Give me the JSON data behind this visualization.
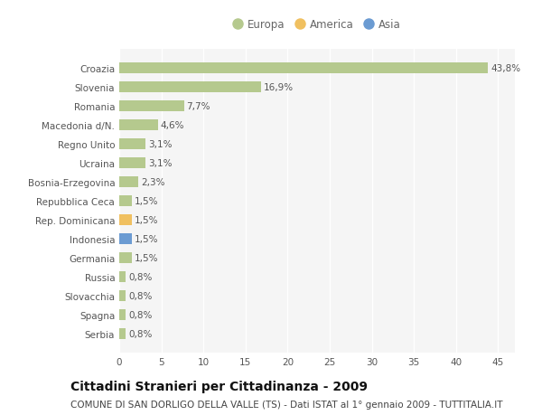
{
  "categories": [
    "Croazia",
    "Slovenia",
    "Romania",
    "Macedonia d/N.",
    "Regno Unito",
    "Ucraina",
    "Bosnia-Erzegovina",
    "Repubblica Ceca",
    "Rep. Dominicana",
    "Indonesia",
    "Germania",
    "Russia",
    "Slovacchia",
    "Spagna",
    "Serbia"
  ],
  "values": [
    43.8,
    16.9,
    7.7,
    4.6,
    3.1,
    3.1,
    2.3,
    1.5,
    1.5,
    1.5,
    1.5,
    0.8,
    0.8,
    0.8,
    0.8
  ],
  "colors": [
    "#b5c98e",
    "#b5c98e",
    "#b5c98e",
    "#b5c98e",
    "#b5c98e",
    "#b5c98e",
    "#b5c98e",
    "#b5c98e",
    "#f0c060",
    "#6b9bd2",
    "#b5c98e",
    "#b5c98e",
    "#b5c98e",
    "#b5c98e",
    "#b5c98e"
  ],
  "labels": [
    "43,8%",
    "16,9%",
    "7,7%",
    "4,6%",
    "3,1%",
    "3,1%",
    "2,3%",
    "1,5%",
    "1,5%",
    "1,5%",
    "1,5%",
    "0,8%",
    "0,8%",
    "0,8%",
    "0,8%"
  ],
  "xlim": [
    0,
    47
  ],
  "xticks": [
    0,
    5,
    10,
    15,
    20,
    25,
    30,
    35,
    40,
    45
  ],
  "legend_items": [
    {
      "label": "Europa",
      "color": "#b5c98e"
    },
    {
      "label": "America",
      "color": "#f0c060"
    },
    {
      "label": "Asia",
      "color": "#6b9bd2"
    }
  ],
  "title": "Cittadini Stranieri per Cittadinanza - 2009",
  "subtitle": "COMUNE DI SAN DORLIGO DELLA VALLE (TS) - Dati ISTAT al 1° gennaio 2009 - TUTTITALIA.IT",
  "bg_color": "#ffffff",
  "plot_bg_color": "#f5f5f5",
  "grid_color": "#ffffff",
  "bar_height": 0.55,
  "title_fontsize": 10,
  "subtitle_fontsize": 7.5,
  "label_fontsize": 7.5,
  "tick_fontsize": 7.5,
  "legend_fontsize": 8.5
}
